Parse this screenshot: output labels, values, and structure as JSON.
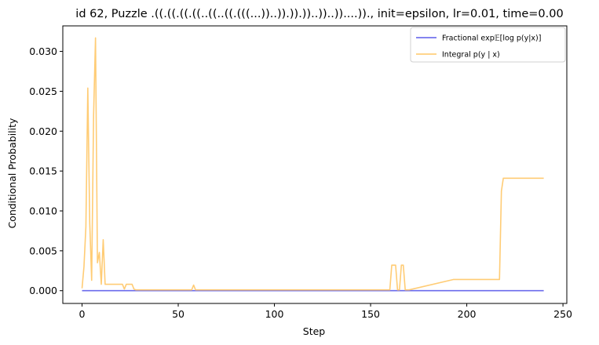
{
  "chart_data": {
    "type": "line",
    "title": "id 62, Puzzle .((.((.((.((..((..((.(((...))..)).)).))..))..))....))., init=epsilon, lr=0.01, time=0.00",
    "xlabel": "Step",
    "ylabel": "Conditional Probability",
    "xlim": [
      -10,
      252
    ],
    "ylim": [
      -0.0016,
      0.0332
    ],
    "xticks": [
      0,
      50,
      100,
      150,
      200,
      250
    ],
    "xtick_labels": [
      "0",
      "50",
      "100",
      "150",
      "200",
      "250"
    ],
    "yticks": [
      0.0,
      0.005,
      0.01,
      0.015,
      0.02,
      0.025,
      0.03
    ],
    "ytick_labels": [
      "0.000",
      "0.005",
      "0.010",
      "0.015",
      "0.020",
      "0.025",
      "0.030"
    ],
    "grid": false,
    "legend_position": "upper right",
    "series": [
      {
        "name": "Fractional exp𝔼[log p(y|x)]",
        "color": "#5b5bea",
        "x": [
          0,
          240
        ],
        "y": [
          0.0,
          0.0
        ]
      },
      {
        "name": "Integral p(y | x)",
        "color": "#ffc766",
        "x": [
          0,
          1,
          2,
          3,
          4,
          5,
          6,
          7,
          8,
          9,
          10,
          11,
          12,
          13,
          20,
          21,
          22,
          23,
          25,
          26,
          27,
          28,
          57,
          58,
          59,
          60,
          160,
          161,
          162,
          163,
          164,
          165,
          166,
          167,
          168,
          169,
          170,
          193,
          194,
          195,
          217,
          218,
          219,
          220,
          240
        ],
        "y": [
          0.0003,
          0.003,
          0.008,
          0.0254,
          0.0085,
          0.0013,
          0.022,
          0.0317,
          0.0035,
          0.0048,
          0.0008,
          0.0064,
          0.0008,
          0.0008,
          0.0008,
          0.0008,
          0.0002,
          0.0008,
          0.0008,
          0.0008,
          0.0002,
          0.0001,
          0.0001,
          0.0007,
          0.0001,
          0.0001,
          0.0001,
          0.0032,
          0.0032,
          0.0032,
          0.0001,
          0.0001,
          0.0032,
          0.0032,
          0.0001,
          0.0001,
          0.0001,
          0.0014,
          0.0014,
          0.0014,
          0.0014,
          0.0125,
          0.0141,
          0.0141,
          0.0141
        ]
      }
    ]
  }
}
